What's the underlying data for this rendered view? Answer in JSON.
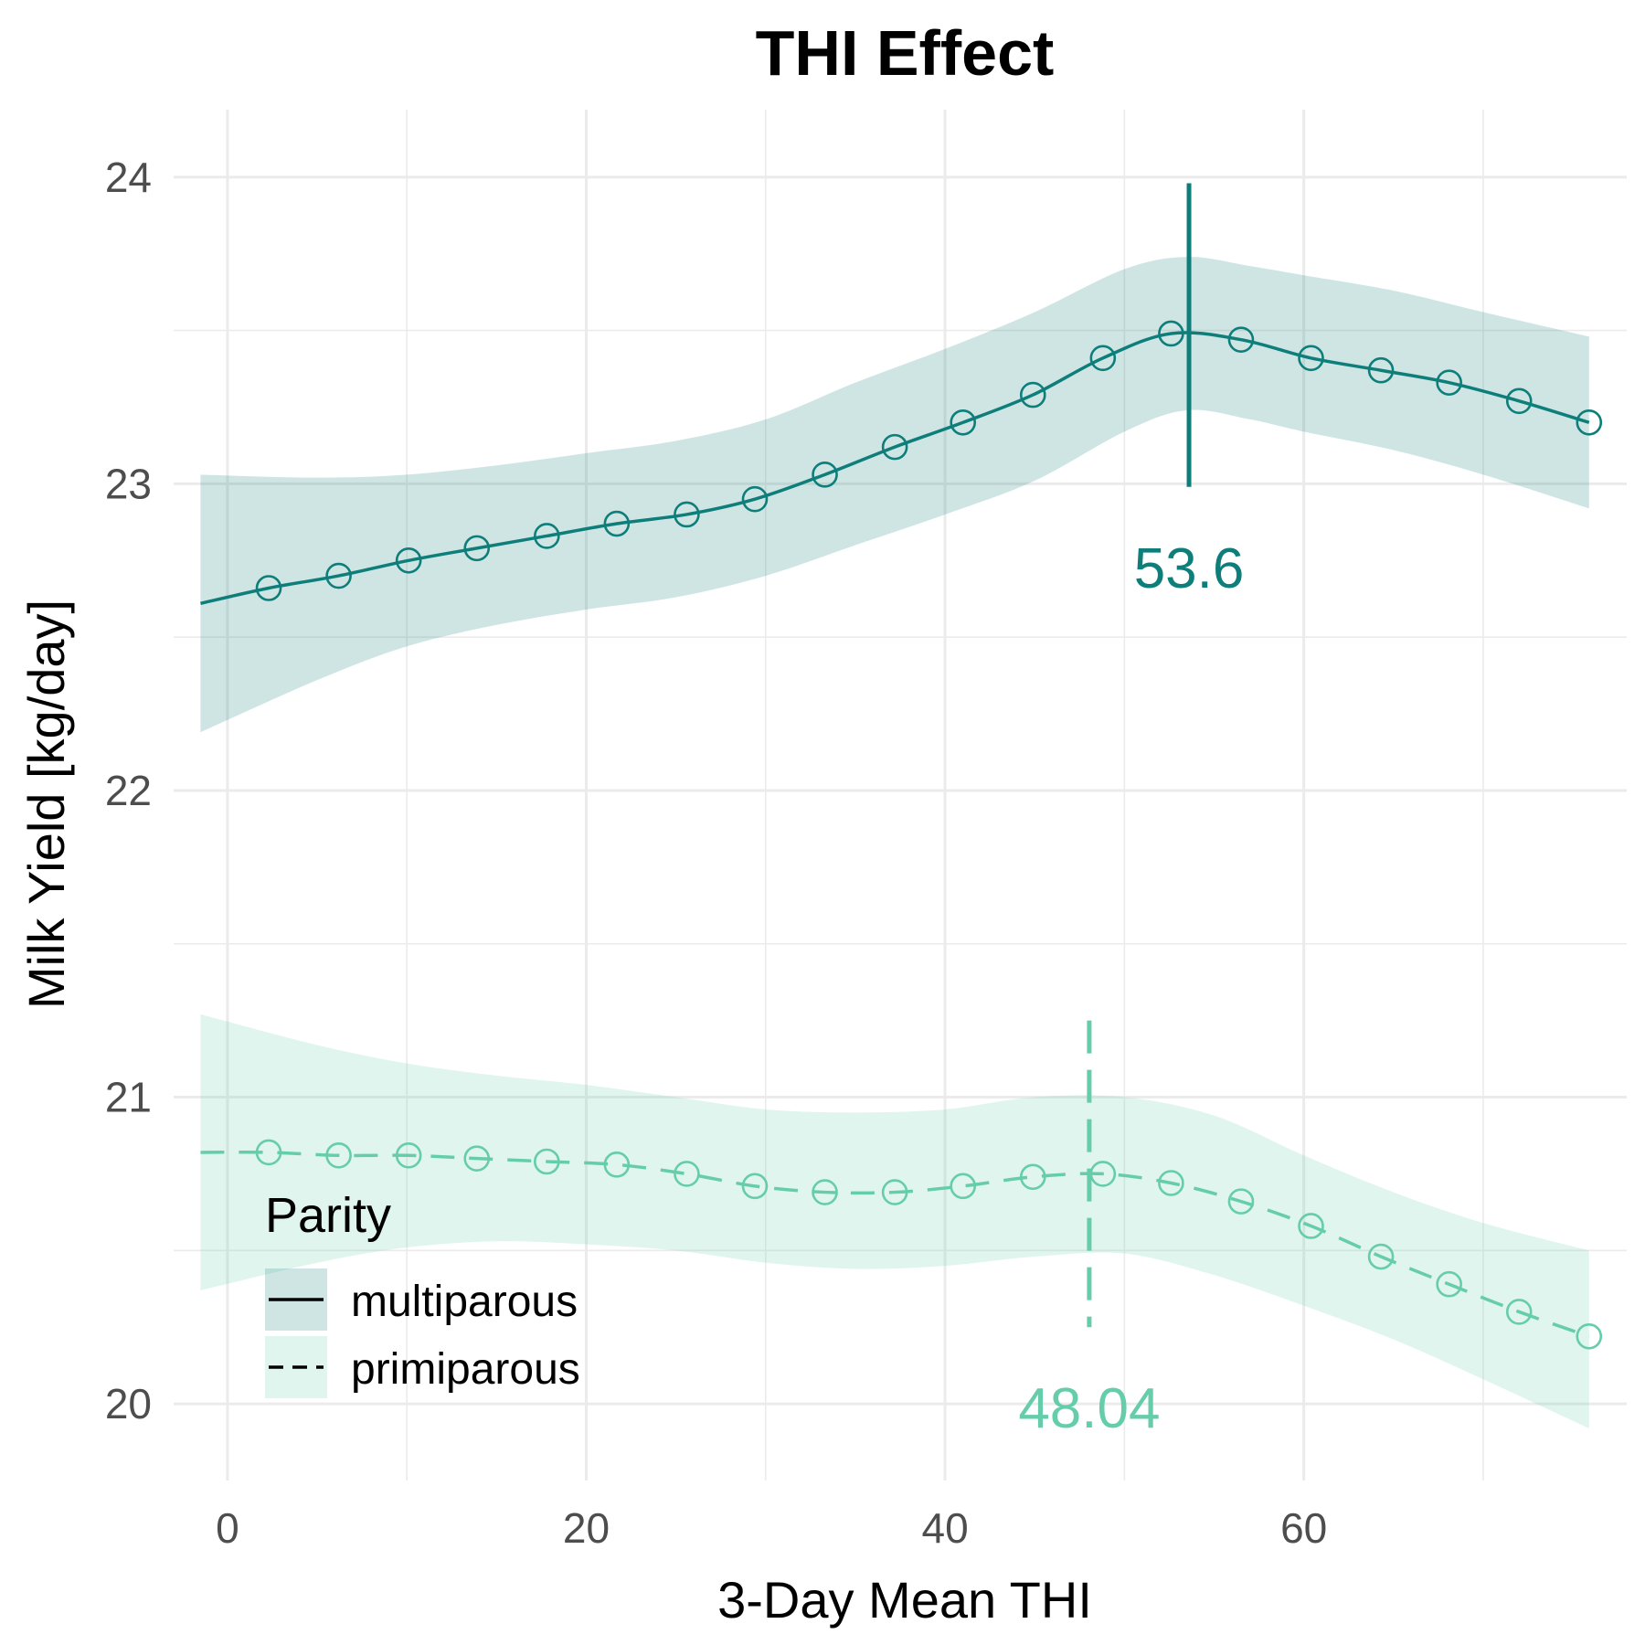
{
  "chart_data": {
    "type": "line",
    "title": "THI Effect",
    "xlabel": "3-Day Mean THI",
    "ylabel": "Milk Yield [kg/day]",
    "xlim": [
      -3,
      78
    ],
    "ylim": [
      19.75,
      24.22
    ],
    "x_ticks": [
      0,
      20,
      40,
      60
    ],
    "x_tick_labels": [
      "0",
      "20",
      "40",
      "60"
    ],
    "y_ticks": [
      20,
      21,
      22,
      23,
      24
    ],
    "y_tick_labels": [
      "20",
      "21",
      "22",
      "23",
      "24"
    ],
    "grid": true,
    "legend": {
      "title": "Parity",
      "position": "bottom-left",
      "entries": [
        "multiparous",
        "primiparous"
      ]
    },
    "colors": {
      "multiparous": "#0E7E7A",
      "primiparous": "#66CDAA",
      "grid": "#EBEBEB"
    },
    "x": [
      2.3,
      6.2,
      10.1,
      13.9,
      17.8,
      21.7,
      25.6,
      29.4,
      33.3,
      37.2,
      41.0,
      44.9,
      48.8,
      52.6,
      56.5,
      60.4,
      64.3,
      68.1,
      72.0,
      75.9
    ],
    "series": [
      {
        "name": "multiparous",
        "linestyle": "solid",
        "line_start": {
          "x": -1.5,
          "y": 22.61
        },
        "values": [
          22.66,
          22.7,
          22.75,
          22.79,
          22.83,
          22.87,
          22.9,
          22.95,
          23.03,
          23.12,
          23.2,
          23.29,
          23.41,
          23.49,
          23.47,
          23.41,
          23.37,
          23.33,
          23.27,
          23.2
        ],
        "band_x": [
          -1.5,
          5,
          10,
          15,
          20,
          25,
          30,
          35,
          40,
          45,
          50,
          53.5,
          57,
          60,
          65,
          70,
          75.9
        ],
        "band_lower": [
          22.19,
          22.36,
          22.47,
          22.54,
          22.59,
          22.63,
          22.7,
          22.8,
          22.9,
          23.01,
          23.17,
          23.24,
          23.21,
          23.17,
          23.11,
          23.03,
          22.92
        ],
        "band_upper": [
          23.03,
          23.02,
          23.03,
          23.06,
          23.1,
          23.14,
          23.21,
          23.33,
          23.44,
          23.56,
          23.7,
          23.74,
          23.71,
          23.68,
          23.63,
          23.56,
          23.48
        ],
        "threshold": 53.6,
        "threshold_label": "53.6",
        "threshold_ymin": 22.99,
        "threshold_ymax": 23.98
      },
      {
        "name": "primiparous",
        "linestyle": "dashed",
        "line_start": {
          "x": -1.5,
          "y": 20.82
        },
        "values": [
          20.82,
          20.81,
          20.81,
          20.8,
          20.79,
          20.78,
          20.75,
          20.71,
          20.69,
          20.69,
          20.71,
          20.74,
          20.75,
          20.72,
          20.66,
          20.58,
          20.48,
          20.39,
          20.3,
          20.22
        ],
        "band_x": [
          -1.5,
          5,
          10,
          15,
          20,
          25,
          30,
          35,
          40,
          45,
          50,
          55,
          60,
          65,
          70,
          75.9
        ],
        "band_lower": [
          20.37,
          20.46,
          20.51,
          20.53,
          20.52,
          20.5,
          20.46,
          20.44,
          20.45,
          20.48,
          20.49,
          20.42,
          20.32,
          20.21,
          20.08,
          19.92
        ],
        "band_upper": [
          21.27,
          21.17,
          21.11,
          21.07,
          21.04,
          21.0,
          20.96,
          20.95,
          20.96,
          21.0,
          21.0,
          20.94,
          20.81,
          20.69,
          20.59,
          20.5
        ],
        "threshold": 48.04,
        "threshold_label": "48.04",
        "threshold_ymin": 20.25,
        "threshold_ymax": 21.25
      }
    ]
  }
}
